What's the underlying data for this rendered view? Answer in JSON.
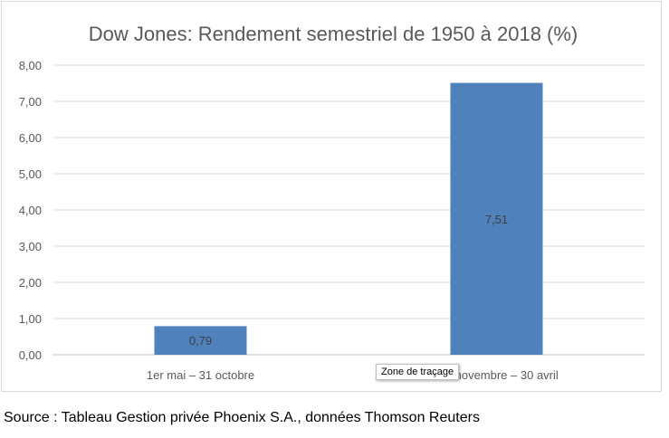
{
  "chart_data": {
    "type": "bar",
    "title": "Dow Jones: Rendement semestriel de 1950 à 2018 (%)",
    "categories": [
      "1er mai – 31 octobre",
      "1er novembre – 30 avril"
    ],
    "values": [
      0.79,
      7.51
    ],
    "data_labels": [
      "0,79",
      "7,51"
    ],
    "ylim": [
      0,
      8
    ],
    "yticks": [
      "0,00",
      "1,00",
      "2,00",
      "3,00",
      "4,00",
      "5,00",
      "6,00",
      "7,00",
      "8,00"
    ],
    "grid": true,
    "legend": "none",
    "bar_color": "#4f81bd",
    "grid_color": "#d9d9d9"
  },
  "tooltip": {
    "text": "Zone de traçage"
  },
  "source": {
    "text": "Source : Tableau Gestion privée Phoenix S.A., données Thomson Reuters"
  }
}
